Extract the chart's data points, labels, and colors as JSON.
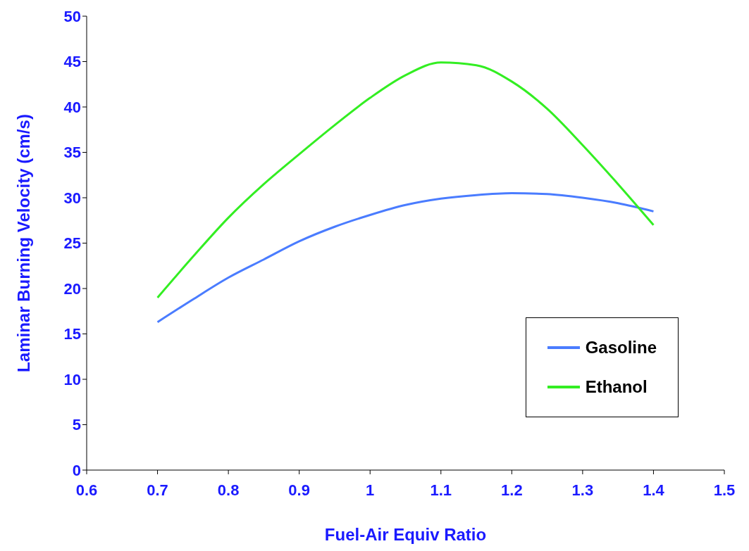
{
  "chart_data": {
    "type": "line",
    "xlabel": "Fuel-Air Equiv Ratio",
    "ylabel": "Laminar Burning Velocity (cm/s)",
    "x": [
      0.7,
      0.75,
      0.8,
      0.85,
      0.9,
      0.95,
      1.0,
      1.05,
      1.1,
      1.15,
      1.2,
      1.25,
      1.3,
      1.35,
      1.4
    ],
    "series": [
      {
        "name": "Gasoline",
        "color": "#4a7cff",
        "values": [
          16.3,
          18.8,
          21.2,
          23.2,
          25.2,
          26.8,
          28.1,
          29.2,
          29.9,
          30.3,
          30.5,
          30.4,
          30.0,
          29.4,
          28.5
        ]
      },
      {
        "name": "Ethanol",
        "color": "#33ee22",
        "values": [
          19,
          23.5,
          27.8,
          31.5,
          34.8,
          38,
          41,
          43.5,
          44.9,
          44.6,
          42.8,
          39.8,
          35.8,
          31.5,
          27
        ]
      }
    ],
    "xlim": [
      0.6,
      1.5
    ],
    "xticks": [
      0.6,
      0.7,
      0.8,
      0.9,
      1,
      1.1,
      1.2,
      1.3,
      1.4,
      1.5
    ],
    "ylim": [
      0,
      50
    ],
    "yticks": [
      0,
      5,
      10,
      15,
      20,
      25,
      30,
      35,
      40,
      45,
      50
    ],
    "grid": false,
    "legend": "bottom right",
    "marker": "none",
    "line_style": "solid"
  }
}
